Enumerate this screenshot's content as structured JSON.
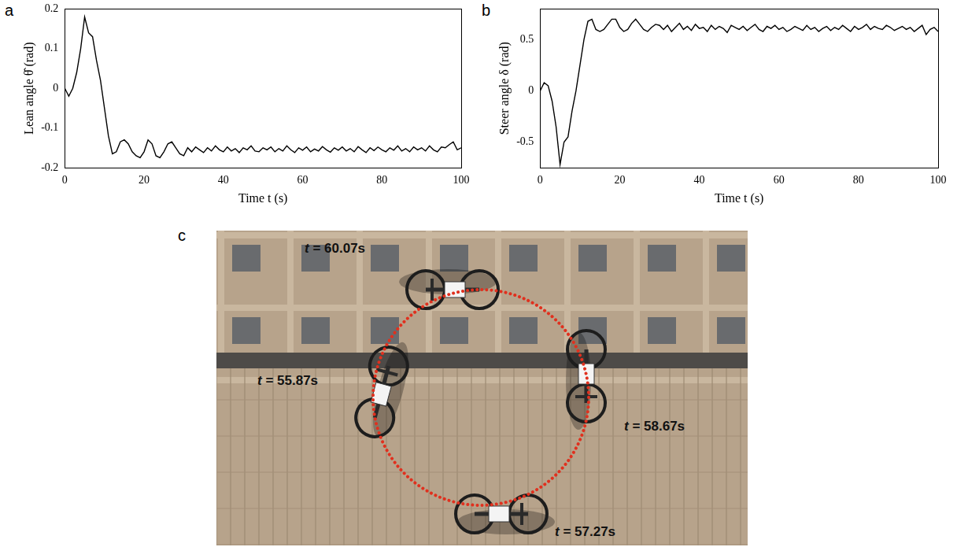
{
  "chart_data": [
    {
      "panel": "a",
      "type": "line",
      "xlabel": "Time t (s)",
      "ylabel": "Lean angle θ̂ (rad)",
      "xlim": [
        0,
        100
      ],
      "xticks": [
        0,
        20,
        40,
        60,
        80,
        100
      ],
      "ylim": [
        -0.2,
        0.2
      ],
      "yticks": [
        -0.2,
        -0.1,
        0,
        0.1,
        0.2
      ],
      "grid": false,
      "color": "#000000",
      "marker": "none",
      "line_style": "solid",
      "x": [
        0,
        1,
        2,
        3,
        4,
        5,
        6,
        7,
        8,
        9,
        10,
        11,
        12,
        13,
        14,
        15,
        16,
        17,
        18,
        19,
        20,
        21,
        22,
        23,
        24,
        25,
        26,
        27,
        28,
        29,
        30,
        31,
        32,
        33,
        34,
        35,
        36,
        37,
        38,
        39,
        40,
        41,
        42,
        43,
        44,
        45,
        46,
        47,
        48,
        49,
        50,
        51,
        52,
        53,
        54,
        55,
        56,
        57,
        58,
        59,
        60,
        61,
        62,
        63,
        64,
        65,
        66,
        67,
        68,
        69,
        70,
        71,
        72,
        73,
        74,
        75,
        76,
        77,
        78,
        79,
        80,
        81,
        82,
        83,
        84,
        85,
        86,
        87,
        88,
        89,
        90,
        91,
        92,
        93,
        94,
        95,
        96,
        97,
        98,
        99,
        100
      ],
      "values": [
        0,
        -0.02,
        0.0,
        0.04,
        0.1,
        0.18,
        0.14,
        0.13,
        0.07,
        0.02,
        -0.05,
        -0.12,
        -0.165,
        -0.16,
        -0.135,
        -0.13,
        -0.14,
        -0.16,
        -0.17,
        -0.175,
        -0.16,
        -0.13,
        -0.14,
        -0.17,
        -0.175,
        -0.16,
        -0.14,
        -0.135,
        -0.15,
        -0.165,
        -0.17,
        -0.15,
        -0.16,
        -0.148,
        -0.155,
        -0.162,
        -0.15,
        -0.158,
        -0.145,
        -0.155,
        -0.16,
        -0.148,
        -0.158,
        -0.152,
        -0.162,
        -0.15,
        -0.155,
        -0.145,
        -0.158,
        -0.16,
        -0.15,
        -0.155,
        -0.148,
        -0.16,
        -0.152,
        -0.158,
        -0.145,
        -0.155,
        -0.162,
        -0.15,
        -0.156,
        -0.148,
        -0.16,
        -0.153,
        -0.158,
        -0.147,
        -0.155,
        -0.161,
        -0.15,
        -0.156,
        -0.148,
        -0.158,
        -0.152,
        -0.16,
        -0.147,
        -0.155,
        -0.162,
        -0.15,
        -0.157,
        -0.148,
        -0.155,
        -0.16,
        -0.15,
        -0.156,
        -0.145,
        -0.158,
        -0.152,
        -0.16,
        -0.148,
        -0.155,
        -0.15,
        -0.158,
        -0.145,
        -0.155,
        -0.16,
        -0.148,
        -0.15,
        -0.142,
        -0.135,
        -0.155,
        -0.15
      ]
    },
    {
      "panel": "b",
      "type": "line",
      "xlabel": "Time t (s)",
      "ylabel": "Steer angle δ (rad)",
      "xlim": [
        0,
        100
      ],
      "xticks": [
        0,
        20,
        40,
        60,
        80,
        100
      ],
      "ylim": [
        -0.75,
        0.8
      ],
      "yticks": [
        -0.5,
        0,
        0.5
      ],
      "grid": false,
      "color": "#000000",
      "marker": "none",
      "line_style": "solid",
      "x": [
        0,
        1,
        2,
        3,
        4,
        5,
        6,
        7,
        8,
        9,
        10,
        11,
        12,
        13,
        14,
        15,
        16,
        17,
        18,
        19,
        20,
        21,
        22,
        23,
        24,
        25,
        26,
        27,
        28,
        29,
        30,
        31,
        32,
        33,
        34,
        35,
        36,
        37,
        38,
        39,
        40,
        41,
        42,
        43,
        44,
        45,
        46,
        47,
        48,
        49,
        50,
        51,
        52,
        53,
        54,
        55,
        56,
        57,
        58,
        59,
        60,
        61,
        62,
        63,
        64,
        65,
        66,
        67,
        68,
        69,
        70,
        71,
        72,
        73,
        74,
        75,
        76,
        77,
        78,
        79,
        80,
        81,
        82,
        83,
        84,
        85,
        86,
        87,
        88,
        89,
        90,
        91,
        92,
        93,
        94,
        95,
        96,
        97,
        98,
        99,
        100
      ],
      "values": [
        0,
        0.08,
        0.05,
        -0.1,
        -0.35,
        -0.72,
        -0.5,
        -0.45,
        -0.2,
        0.0,
        0.25,
        0.5,
        0.68,
        0.7,
        0.6,
        0.58,
        0.6,
        0.65,
        0.7,
        0.7,
        0.62,
        0.58,
        0.6,
        0.66,
        0.7,
        0.65,
        0.6,
        0.58,
        0.62,
        0.65,
        0.64,
        0.6,
        0.64,
        0.58,
        0.62,
        0.66,
        0.6,
        0.63,
        0.59,
        0.65,
        0.61,
        0.62,
        0.58,
        0.64,
        0.6,
        0.63,
        0.61,
        0.57,
        0.64,
        0.62,
        0.6,
        0.63,
        0.59,
        0.62,
        0.65,
        0.6,
        0.58,
        0.63,
        0.61,
        0.64,
        0.6,
        0.62,
        0.58,
        0.6,
        0.63,
        0.61,
        0.59,
        0.64,
        0.6,
        0.62,
        0.58,
        0.61,
        0.63,
        0.59,
        0.62,
        0.6,
        0.64,
        0.61,
        0.58,
        0.63,
        0.6,
        0.62,
        0.65,
        0.6,
        0.63,
        0.61,
        0.6,
        0.64,
        0.62,
        0.59,
        0.61,
        0.63,
        0.6,
        0.62,
        0.58,
        0.61,
        0.64,
        0.55,
        0.6,
        0.62,
        0.58
      ]
    }
  ],
  "photo": {
    "panel": "c",
    "annotations": [
      "t = 60.07s",
      "t = 58.67s",
      "t = 55.87s",
      "t = 57.27s"
    ]
  }
}
